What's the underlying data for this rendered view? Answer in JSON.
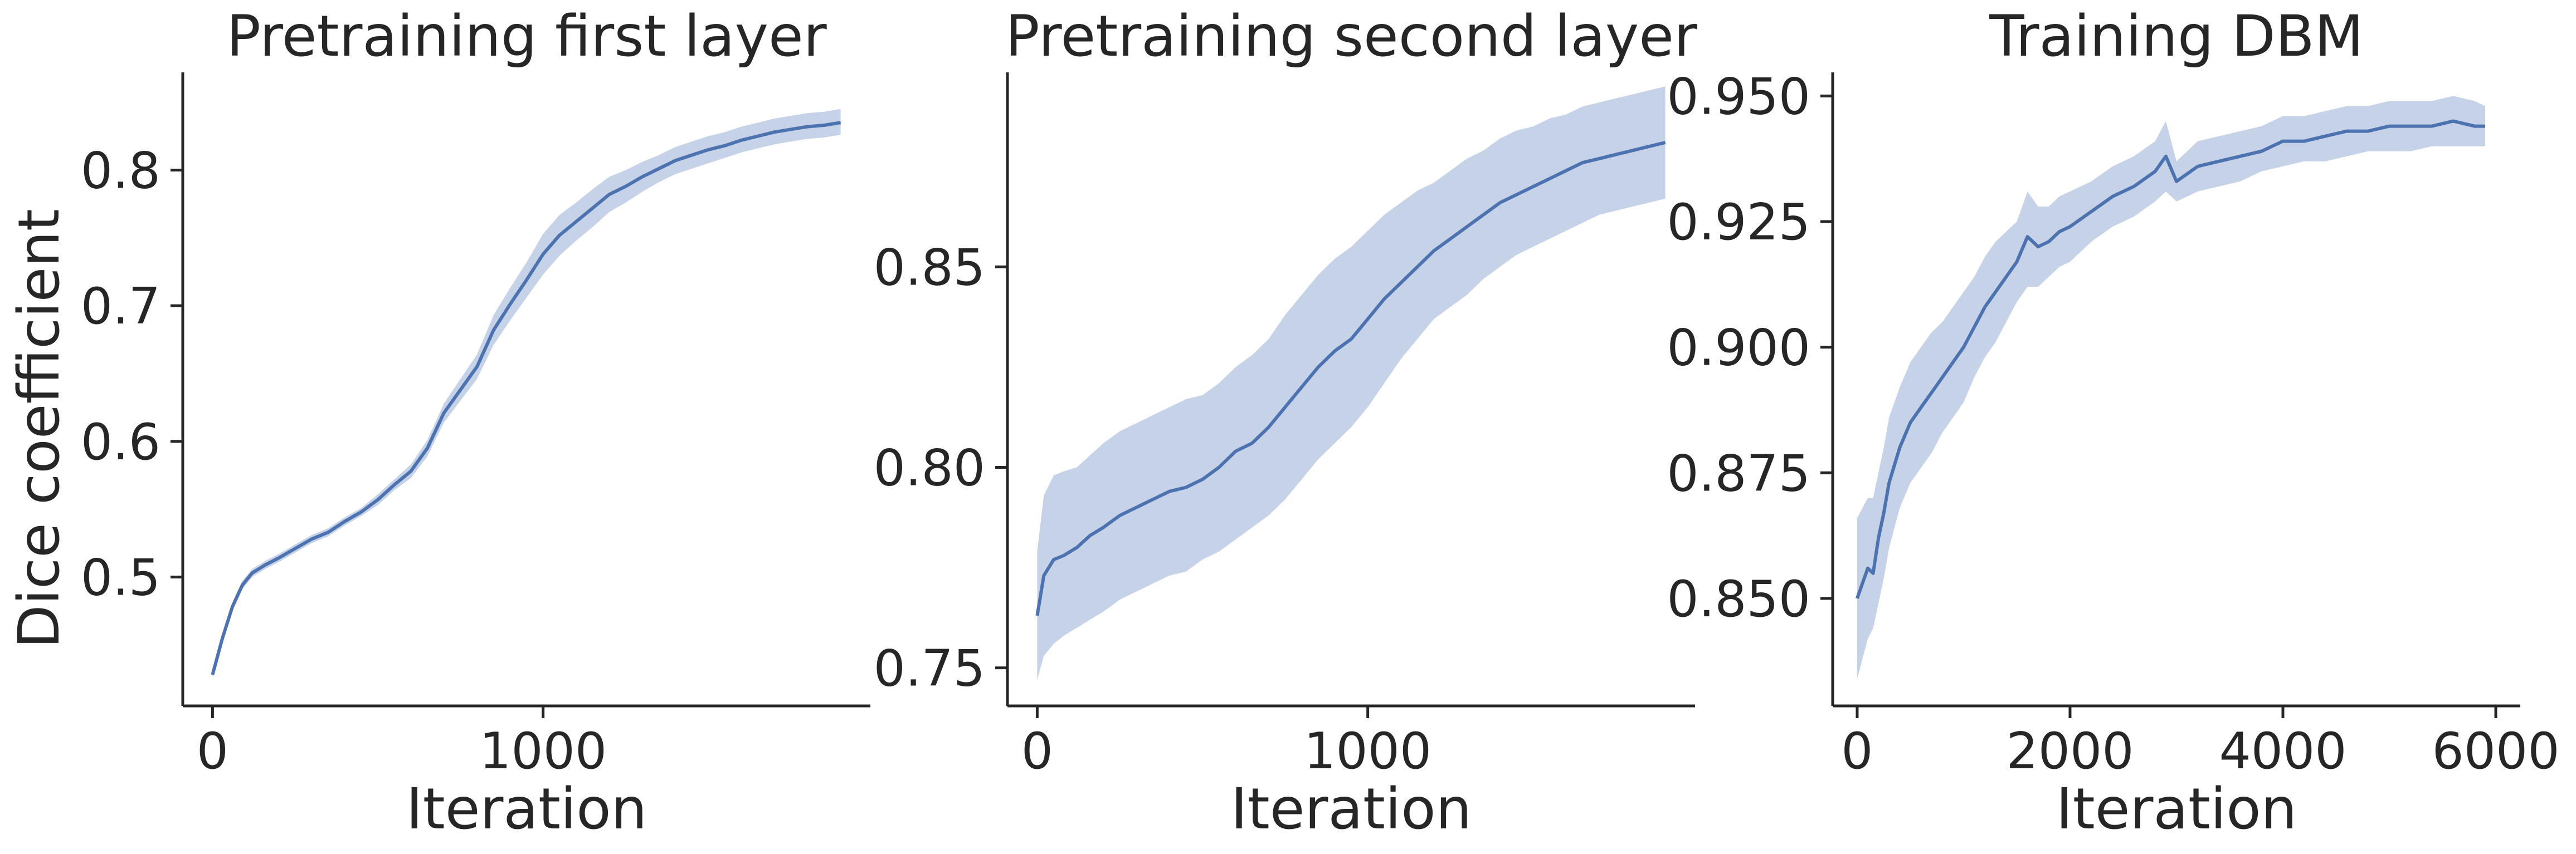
{
  "colors": {
    "line": "#4c72b0",
    "band": "#c6d2e8",
    "axes": "#262626"
  },
  "chart_data": [
    {
      "type": "line",
      "title": "Pretraining first layer",
      "xlabel": "Iteration",
      "ylabel": "Dice coefficient",
      "xlim": [
        -90,
        1990
      ],
      "ylim": [
        0.405,
        0.872
      ],
      "xticks": [
        0,
        1000
      ],
      "xtick_labels": [
        "0",
        "1000"
      ],
      "yticks": [
        0.5,
        0.6,
        0.7,
        0.8
      ],
      "ytick_labels": [
        "0.5",
        "0.6",
        "0.7",
        "0.8"
      ],
      "grid": false,
      "legend": "none",
      "series": [
        {
          "x": [
            0,
            30,
            60,
            90,
            120,
            160,
            200,
            250,
            300,
            350,
            400,
            450,
            500,
            550,
            600,
            650,
            700,
            750,
            800,
            850,
            900,
            950,
            1000,
            1050,
            1100,
            1150,
            1200,
            1250,
            1300,
            1350,
            1400,
            1450,
            1500,
            1550,
            1600,
            1650,
            1700,
            1750,
            1800,
            1850,
            1900
          ],
          "y": [
            0.428,
            0.455,
            0.478,
            0.494,
            0.503,
            0.509,
            0.514,
            0.521,
            0.528,
            0.533,
            0.541,
            0.548,
            0.557,
            0.568,
            0.578,
            0.595,
            0.621,
            0.638,
            0.655,
            0.682,
            0.701,
            0.719,
            0.738,
            0.752,
            0.762,
            0.772,
            0.782,
            0.788,
            0.795,
            0.801,
            0.807,
            0.811,
            0.815,
            0.818,
            0.822,
            0.825,
            0.828,
            0.83,
            0.832,
            0.833,
            0.835
          ],
          "y_low": [
            0.426,
            0.452,
            0.475,
            0.491,
            0.5,
            0.506,
            0.511,
            0.518,
            0.525,
            0.53,
            0.538,
            0.545,
            0.553,
            0.564,
            0.573,
            0.589,
            0.614,
            0.63,
            0.646,
            0.671,
            0.689,
            0.706,
            0.723,
            0.737,
            0.748,
            0.758,
            0.769,
            0.776,
            0.784,
            0.791,
            0.797,
            0.801,
            0.805,
            0.809,
            0.813,
            0.816,
            0.819,
            0.821,
            0.823,
            0.824,
            0.826
          ],
          "y_high": [
            0.43,
            0.458,
            0.481,
            0.497,
            0.506,
            0.512,
            0.517,
            0.524,
            0.531,
            0.536,
            0.544,
            0.551,
            0.561,
            0.572,
            0.583,
            0.601,
            0.628,
            0.646,
            0.664,
            0.693,
            0.713,
            0.732,
            0.753,
            0.767,
            0.776,
            0.786,
            0.795,
            0.8,
            0.806,
            0.811,
            0.817,
            0.821,
            0.825,
            0.828,
            0.832,
            0.835,
            0.838,
            0.84,
            0.842,
            0.843,
            0.845
          ]
        }
      ]
    },
    {
      "type": "line",
      "title": "Pretraining second layer",
      "xlabel": "Iteration",
      "ylabel": "",
      "xlim": [
        -90,
        1990
      ],
      "ylim": [
        0.7405,
        0.8985
      ],
      "xticks": [
        0,
        1000
      ],
      "xtick_labels": [
        "0",
        "1000"
      ],
      "yticks": [
        0.75,
        0.8,
        0.85
      ],
      "ytick_labels": [
        "0.75",
        "0.80",
        "0.85"
      ],
      "grid": false,
      "legend": "none",
      "series": [
        {
          "x": [
            0,
            20,
            50,
            80,
            120,
            160,
            200,
            250,
            300,
            350,
            400,
            450,
            500,
            550,
            600,
            650,
            700,
            750,
            800,
            850,
            900,
            950,
            1000,
            1050,
            1100,
            1150,
            1200,
            1250,
            1300,
            1350,
            1400,
            1450,
            1500,
            1550,
            1600,
            1650,
            1700,
            1750,
            1800,
            1850,
            1900
          ],
          "y": [
            0.763,
            0.773,
            0.777,
            0.778,
            0.78,
            0.783,
            0.785,
            0.788,
            0.79,
            0.792,
            0.794,
            0.795,
            0.797,
            0.8,
            0.804,
            0.806,
            0.81,
            0.815,
            0.82,
            0.825,
            0.829,
            0.832,
            0.837,
            0.842,
            0.846,
            0.85,
            0.854,
            0.857,
            0.86,
            0.863,
            0.866,
            0.868,
            0.87,
            0.872,
            0.874,
            0.876,
            0.877,
            0.878,
            0.879,
            0.88,
            0.881
          ],
          "y_low": [
            0.747,
            0.753,
            0.756,
            0.758,
            0.76,
            0.762,
            0.764,
            0.767,
            0.769,
            0.771,
            0.773,
            0.774,
            0.777,
            0.779,
            0.782,
            0.785,
            0.788,
            0.792,
            0.797,
            0.802,
            0.806,
            0.81,
            0.815,
            0.821,
            0.827,
            0.832,
            0.837,
            0.84,
            0.843,
            0.847,
            0.85,
            0.853,
            0.855,
            0.857,
            0.859,
            0.861,
            0.863,
            0.864,
            0.865,
            0.866,
            0.867
          ],
          "y_high": [
            0.779,
            0.793,
            0.798,
            0.799,
            0.8,
            0.803,
            0.806,
            0.809,
            0.811,
            0.813,
            0.815,
            0.817,
            0.818,
            0.821,
            0.825,
            0.828,
            0.832,
            0.838,
            0.843,
            0.848,
            0.852,
            0.855,
            0.859,
            0.863,
            0.866,
            0.869,
            0.871,
            0.874,
            0.877,
            0.879,
            0.882,
            0.884,
            0.885,
            0.887,
            0.888,
            0.89,
            0.891,
            0.892,
            0.893,
            0.894,
            0.895
          ]
        }
      ]
    },
    {
      "type": "line",
      "title": "Training DBM",
      "xlabel": "Iteration",
      "ylabel": "",
      "xlim": [
        -230,
        6230
      ],
      "ylim": [
        0.8286,
        0.9547
      ],
      "xticks": [
        0,
        2000,
        4000,
        6000
      ],
      "xtick_labels": [
        "0",
        "2000",
        "4000",
        "6000"
      ],
      "yticks": [
        0.85,
        0.875,
        0.9,
        0.925,
        0.95
      ],
      "ytick_labels": [
        "0.850",
        "0.875",
        "0.900",
        "0.925",
        "0.950"
      ],
      "grid": false,
      "legend": "none",
      "series": [
        {
          "x": [
            0,
            50,
            100,
            150,
            200,
            250,
            300,
            400,
            500,
            600,
            700,
            800,
            900,
            1000,
            1100,
            1200,
            1300,
            1400,
            1500,
            1600,
            1700,
            1800,
            1900,
            2000,
            2200,
            2400,
            2600,
            2800,
            2900,
            3000,
            3200,
            3400,
            3600,
            3800,
            4000,
            4200,
            4400,
            4600,
            4800,
            5000,
            5200,
            5400,
            5600,
            5800,
            5900
          ],
          "y": [
            0.85,
            0.853,
            0.856,
            0.855,
            0.862,
            0.867,
            0.873,
            0.88,
            0.885,
            0.888,
            0.891,
            0.894,
            0.897,
            0.9,
            0.904,
            0.908,
            0.911,
            0.914,
            0.917,
            0.922,
            0.92,
            0.921,
            0.923,
            0.924,
            0.927,
            0.93,
            0.932,
            0.935,
            0.938,
            0.933,
            0.936,
            0.937,
            0.938,
            0.939,
            0.941,
            0.941,
            0.942,
            0.943,
            0.943,
            0.944,
            0.944,
            0.944,
            0.945,
            0.944,
            0.944
          ],
          "y_low": [
            0.834,
            0.838,
            0.842,
            0.844,
            0.849,
            0.854,
            0.86,
            0.868,
            0.873,
            0.876,
            0.879,
            0.883,
            0.886,
            0.889,
            0.894,
            0.898,
            0.901,
            0.905,
            0.909,
            0.912,
            0.912,
            0.914,
            0.916,
            0.917,
            0.921,
            0.924,
            0.926,
            0.929,
            0.931,
            0.929,
            0.931,
            0.932,
            0.933,
            0.935,
            0.936,
            0.937,
            0.937,
            0.938,
            0.939,
            0.939,
            0.939,
            0.94,
            0.94,
            0.94,
            0.94
          ],
          "y_high": [
            0.866,
            0.868,
            0.87,
            0.87,
            0.875,
            0.88,
            0.886,
            0.892,
            0.897,
            0.9,
            0.903,
            0.905,
            0.908,
            0.911,
            0.914,
            0.918,
            0.921,
            0.923,
            0.925,
            0.931,
            0.928,
            0.928,
            0.93,
            0.931,
            0.933,
            0.936,
            0.938,
            0.941,
            0.945,
            0.937,
            0.941,
            0.942,
            0.943,
            0.944,
            0.946,
            0.946,
            0.947,
            0.948,
            0.948,
            0.949,
            0.949,
            0.949,
            0.95,
            0.949,
            0.948
          ]
        }
      ]
    }
  ]
}
